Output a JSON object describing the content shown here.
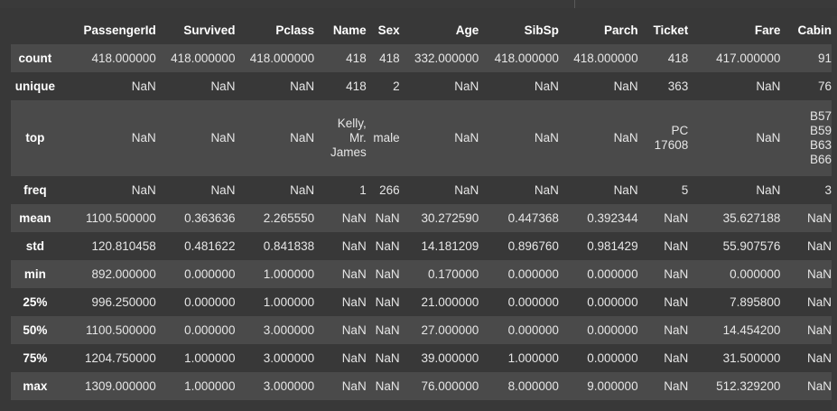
{
  "dataframe": {
    "columns": [
      "PassengerId",
      "Survived",
      "Pclass",
      "Name",
      "Sex",
      "Age",
      "SibSp",
      "Parch",
      "Ticket",
      "Fare",
      "Cabin"
    ],
    "rows": [
      {
        "index": "count",
        "values": [
          "418.000000",
          "418.000000",
          "418.000000",
          "418",
          "418",
          "332.000000",
          "418.000000",
          "418.000000",
          "418",
          "417.000000",
          "91"
        ]
      },
      {
        "index": "unique",
        "values": [
          "NaN",
          "NaN",
          "NaN",
          "418",
          "2",
          "NaN",
          "NaN",
          "NaN",
          "363",
          "NaN",
          "76"
        ]
      },
      {
        "index": "top",
        "values": [
          "NaN",
          "NaN",
          "NaN",
          "Kelly, Mr. James",
          "male",
          "NaN",
          "NaN",
          "NaN",
          "PC 17608",
          "NaN",
          "B57 B59 B63 B66"
        ]
      },
      {
        "index": "freq",
        "values": [
          "NaN",
          "NaN",
          "NaN",
          "1",
          "266",
          "NaN",
          "NaN",
          "NaN",
          "5",
          "NaN",
          "3"
        ]
      },
      {
        "index": "mean",
        "values": [
          "1100.500000",
          "0.363636",
          "2.265550",
          "NaN",
          "NaN",
          "30.272590",
          "0.447368",
          "0.392344",
          "NaN",
          "35.627188",
          "NaN"
        ]
      },
      {
        "index": "std",
        "values": [
          "120.810458",
          "0.481622",
          "0.841838",
          "NaN",
          "NaN",
          "14.181209",
          "0.896760",
          "0.981429",
          "NaN",
          "55.907576",
          "NaN"
        ]
      },
      {
        "index": "min",
        "values": [
          "892.000000",
          "0.000000",
          "1.000000",
          "NaN",
          "NaN",
          "0.170000",
          "0.000000",
          "0.000000",
          "NaN",
          "0.000000",
          "NaN"
        ]
      },
      {
        "index": "25%",
        "values": [
          "996.250000",
          "0.000000",
          "1.000000",
          "NaN",
          "NaN",
          "21.000000",
          "0.000000",
          "0.000000",
          "NaN",
          "7.895800",
          "NaN"
        ]
      },
      {
        "index": "50%",
        "values": [
          "1100.500000",
          "0.000000",
          "3.000000",
          "NaN",
          "NaN",
          "27.000000",
          "0.000000",
          "0.000000",
          "NaN",
          "14.454200",
          "NaN"
        ]
      },
      {
        "index": "75%",
        "values": [
          "1204.750000",
          "1.000000",
          "3.000000",
          "NaN",
          "NaN",
          "39.000000",
          "1.000000",
          "0.000000",
          "NaN",
          "31.500000",
          "NaN"
        ]
      },
      {
        "index": "max",
        "values": [
          "1309.000000",
          "1.000000",
          "3.000000",
          "NaN",
          "NaN",
          "76.000000",
          "8.000000",
          "9.000000",
          "NaN",
          "512.329200",
          "NaN"
        ]
      }
    ]
  },
  "colors": {
    "background": "#383838",
    "row_stripe": "#4a4a4a",
    "text": "#e6e6e6",
    "header_text": "#ffffff"
  }
}
